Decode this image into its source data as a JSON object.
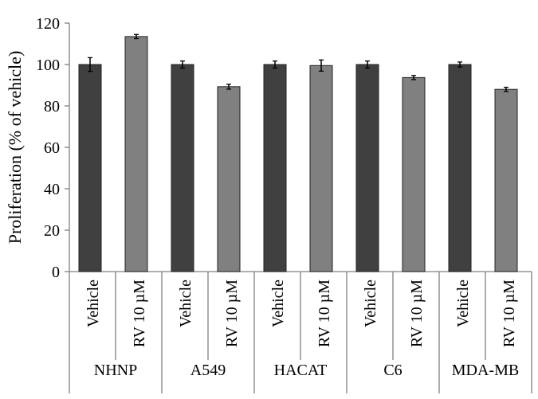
{
  "chart_data": {
    "type": "bar",
    "title": "",
    "ylabel": "Proliferation (% of vehicle)",
    "xlabel": "",
    "ylim": [
      0,
      120
    ],
    "yticks": [
      0,
      20,
      40,
      60,
      80,
      100,
      120
    ],
    "grid": false,
    "groups": [
      {
        "name": "NHNP",
        "bars": [
          {
            "label": "Vehicle",
            "value": 100,
            "error": 3.3
          },
          {
            "label": "RV 10 µM",
            "value": 113.5,
            "error": 1.0
          }
        ]
      },
      {
        "name": "A549",
        "bars": [
          {
            "label": "Vehicle",
            "value": 100,
            "error": 1.7
          },
          {
            "label": "RV 10 µM",
            "value": 89.3,
            "error": 1.2
          }
        ]
      },
      {
        "name": "HACAT",
        "bars": [
          {
            "label": "Vehicle",
            "value": 100,
            "error": 1.7
          },
          {
            "label": "RV 10 µM",
            "value": 99.5,
            "error": 2.7
          }
        ]
      },
      {
        "name": "C6",
        "bars": [
          {
            "label": "Vehicle",
            "value": 100,
            "error": 1.7
          },
          {
            "label": "RV 10 µM",
            "value": 93.7,
            "error": 1.0
          }
        ]
      },
      {
        "name": "MDA-MB",
        "bars": [
          {
            "label": "Vehicle",
            "value": 100,
            "error": 1.2
          },
          {
            "label": "RV 10 µM",
            "value": 88.0,
            "error": 1.0
          }
        ]
      }
    ],
    "colors": {
      "Vehicle": "#404040",
      "RV 10 µM": "#808080"
    }
  }
}
